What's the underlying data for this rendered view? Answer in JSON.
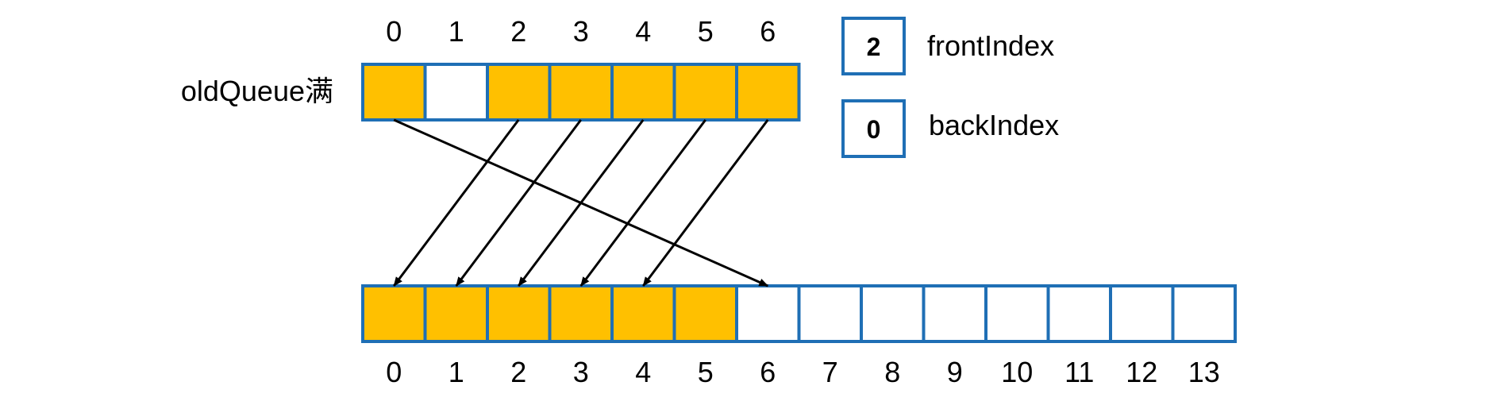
{
  "old_queue": {
    "label": "oldQueue满",
    "indices": [
      "0",
      "1",
      "2",
      "3",
      "4",
      "5",
      "6"
    ],
    "filled": [
      true,
      false,
      true,
      true,
      true,
      true,
      true
    ]
  },
  "new_queue": {
    "indices": [
      "0",
      "1",
      "2",
      "3",
      "4",
      "5",
      "6",
      "7",
      "8",
      "9",
      "10",
      "11",
      "12",
      "13"
    ],
    "filled": [
      true,
      true,
      true,
      true,
      true,
      true,
      false,
      false,
      false,
      false,
      false,
      false,
      false,
      false
    ]
  },
  "pointers": {
    "front": {
      "value": "2",
      "label": "frontIndex"
    },
    "back": {
      "value": "0",
      "label": "backIndex"
    }
  },
  "copy_arrows": [
    {
      "from": 0,
      "to": 6
    },
    {
      "from": 2,
      "to": 0
    },
    {
      "from": 3,
      "to": 1
    },
    {
      "from": 4,
      "to": 2
    },
    {
      "from": 5,
      "to": 3
    },
    {
      "from": 6,
      "to": 4
    }
  ],
  "colors": {
    "filled": "#FFC000",
    "empty": "#FFFFFF",
    "border": "#1F6FB5",
    "arrow": "#000000"
  }
}
